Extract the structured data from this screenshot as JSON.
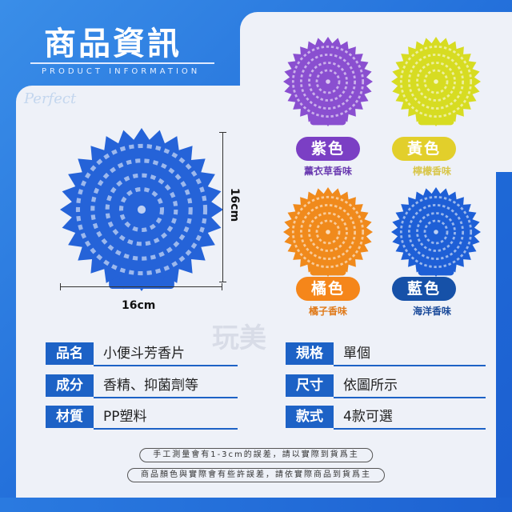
{
  "header": {
    "title": "商品資訊",
    "subtitle": "PRODUCT INFORMATION",
    "watermark": "Perfect"
  },
  "dimensions": {
    "width": "16cm",
    "height": "16cm"
  },
  "variants": [
    {
      "color_name": "紫色",
      "scent": "薰衣草香味",
      "color": "#8a4fd0",
      "pill": "#7b3fc4",
      "text": "#6a3ab0"
    },
    {
      "color_name": "黃色",
      "scent": "檸檬香味",
      "color": "#d7dc22",
      "pill": "#e2cf2b",
      "text": "#d8c64a"
    },
    {
      "color_name": "橘色",
      "scent": "橘子香味",
      "color": "#f08a1c",
      "pill": "#f5861a",
      "text": "#e07a1a"
    },
    {
      "color_name": "藍色",
      "scent": "海洋香味",
      "color": "#1e5fd6",
      "pill": "#1651a8",
      "text": "#1a4a9a"
    }
  ],
  "main_disc_color": "#2563d8",
  "specs": [
    {
      "label": "品名",
      "value": "小便斗芳香片"
    },
    {
      "label": "規格",
      "value": "單個"
    },
    {
      "label": "成分",
      "value": "香精、抑菌劑等"
    },
    {
      "label": "尺寸",
      "value": "依圖所示"
    },
    {
      "label": "材質",
      "value": "PP塑料"
    },
    {
      "label": "款式",
      "value": "4款可選"
    }
  ],
  "notes": [
    "手工測量會有1-3cm的誤差，請以實際到貨爲主",
    "商品顏色與實際會有些許誤差，請依實際商品到貨爲主"
  ],
  "watermark2": "玩美"
}
